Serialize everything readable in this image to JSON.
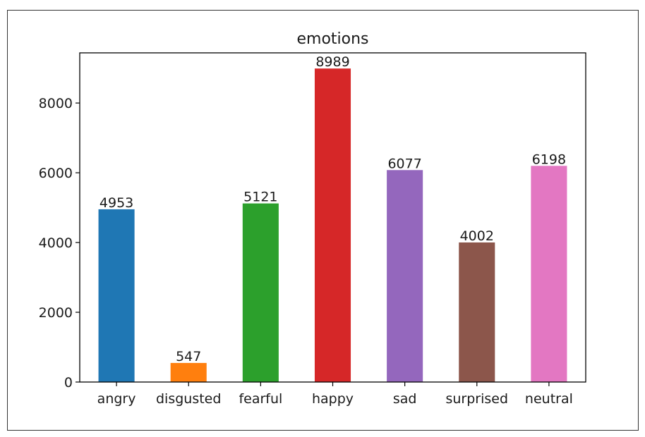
{
  "chart_data": {
    "type": "bar",
    "title": "emotions",
    "xlabel": "",
    "ylabel": "",
    "categories": [
      "angry",
      "disgusted",
      "fearful",
      "happy",
      "sad",
      "surprised",
      "neutral"
    ],
    "values": [
      4953,
      547,
      5121,
      8989,
      6077,
      4002,
      6198
    ],
    "data_labels": [
      "4953",
      "547",
      "5121",
      "8989",
      "6077",
      "4002",
      "6198"
    ],
    "colors": [
      "#1f77b4",
      "#ff7f0e",
      "#2ca02c",
      "#d62728",
      "#9467bd",
      "#8c564b",
      "#e377c2"
    ],
    "ylim": [
      0,
      9438
    ],
    "yticks": [
      0,
      2000,
      4000,
      6000,
      8000
    ],
    "ytick_labels": [
      "0",
      "2000",
      "4000",
      "6000",
      "8000"
    ],
    "grid": false,
    "legend": "none"
  }
}
